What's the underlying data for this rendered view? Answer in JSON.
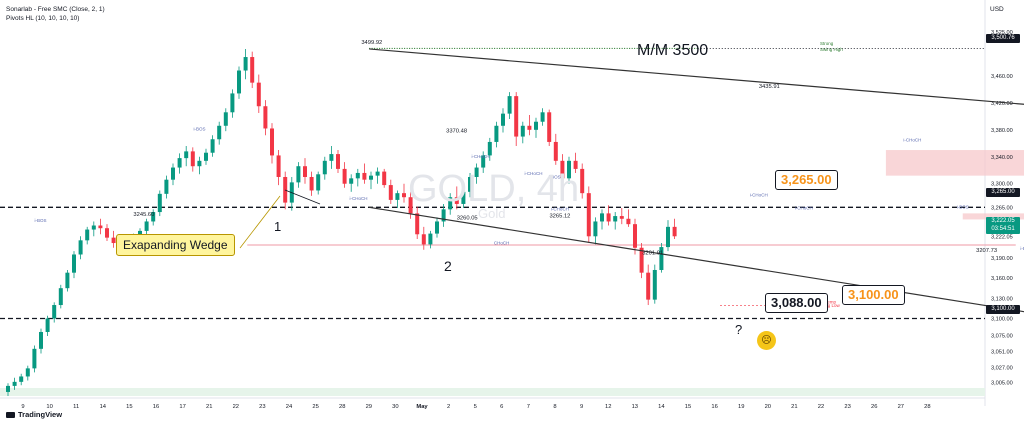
{
  "header": {
    "indicator_1": "Sonarlab - Free SMC (Close, 2, 1)",
    "indicator_2": "Pivots HL (10, 10, 10, 10)",
    "currency": "USD",
    "brand": "TradingView"
  },
  "watermark": {
    "symbol": "GOLD, 4h",
    "description": "Gold"
  },
  "annotations": {
    "mm_label": "M/M 3500",
    "wedge_label": "Exapanding Wedge",
    "wave_1": "1",
    "wave_2": "2",
    "question": "?",
    "callout_3265": "3,265.00",
    "callout_3100": "3,100.00",
    "callout_3088": "3,088.00",
    "strong_high": "Strong",
    "swing_high": "Swing High",
    "temp_line_1": "Temp",
    "temp_line_2": "Swing Low"
  },
  "price_tags": {
    "high": "3,500.76",
    "level_3265": "3,265.00",
    "current_price": "3,222.05",
    "countdown": "03:54:51",
    "level_3100": "3,100.00"
  },
  "smc_labels": [
    {
      "text": "i-BOS",
      "x": 15.7,
      "y": 3379
    },
    {
      "text": "i-BOS",
      "x": 9.7,
      "y": 3243
    },
    {
      "text": "i-CHoCH",
      "x": 21.7,
      "y": 3276
    },
    {
      "text": "i-CHoCH",
      "x": 26.3,
      "y": 3338
    },
    {
      "text": "i-CHoCH",
      "x": 28.3,
      "y": 3313
    },
    {
      "text": "i-BOS",
      "x": 29.1,
      "y": 3308
    },
    {
      "text": "i-CHoCH",
      "x": 29.3,
      "y": 3260
    },
    {
      "text": "CHoCH",
      "x": 27.1,
      "y": 3210
    },
    {
      "text": "i-CHoCH",
      "x": 36.8,
      "y": 3281
    },
    {
      "text": "i-CHoCH",
      "x": 38.5,
      "y": 3262
    },
    {
      "text": "i-CHoCH",
      "x": 42.6,
      "y": 3363
    },
    {
      "text": "i-BOS",
      "x": 44.5,
      "y": 3263
    },
    {
      "text": "i-BOS",
      "x": 46.9,
      "y": 3202
    }
  ],
  "chart_data": {
    "type": "candlestick",
    "symbol": "GOLD",
    "timeframe": "4h",
    "x_ticks": [
      "9",
      "10",
      "11",
      "14",
      "15",
      "16",
      "17",
      "21",
      "22",
      "23",
      "24",
      "25",
      "28",
      "29",
      "30",
      "May",
      "2",
      "5",
      "6",
      "7",
      "8",
      "9",
      "12",
      "13",
      "14",
      "15",
      "16",
      "19",
      "20",
      "21",
      "22",
      "23",
      "26",
      "27",
      "28"
    ],
    "y_ticks": [
      "3,525.00",
      "3,460.00",
      "3,420.00",
      "3,380.00",
      "3,340.00",
      "3,300.00",
      "3,265.00",
      "3,222.05",
      "3,190.00",
      "3,160.00",
      "3,130.00",
      "3,100.00",
      "3,075.00",
      "3,051.00",
      "3,027.00",
      "3,005.00"
    ],
    "ylim": [
      2985,
      3540
    ],
    "candles": [
      [
        2991,
        3004,
        2985,
        3000
      ],
      [
        3000,
        3012,
        2994,
        3006
      ],
      [
        3006,
        3018,
        3001,
        3014
      ],
      [
        3014,
        3030,
        3008,
        3026
      ],
      [
        3026,
        3060,
        3020,
        3055
      ],
      [
        3055,
        3085,
        3048,
        3080
      ],
      [
        3080,
        3104,
        3074,
        3100
      ],
      [
        3100,
        3124,
        3094,
        3120
      ],
      [
        3120,
        3150,
        3115,
        3145
      ],
      [
        3145,
        3172,
        3140,
        3168
      ],
      [
        3168,
        3200,
        3160,
        3195
      ],
      [
        3195,
        3222,
        3188,
        3216
      ],
      [
        3216,
        3236,
        3210,
        3232
      ],
      [
        3232,
        3244,
        3222,
        3238
      ],
      [
        3238,
        3248,
        3225,
        3234
      ],
      [
        3234,
        3240,
        3215,
        3220
      ],
      [
        3220,
        3230,
        3205,
        3212
      ],
      [
        3212,
        3225,
        3203,
        3210
      ],
      [
        3210,
        3222,
        3200,
        3214
      ],
      [
        3214,
        3226,
        3206,
        3220
      ],
      [
        3220,
        3234,
        3212,
        3230
      ],
      [
        3230,
        3248,
        3222,
        3244
      ],
      [
        3244,
        3262,
        3238,
        3258
      ],
      [
        3258,
        3290,
        3252,
        3285
      ],
      [
        3285,
        3312,
        3278,
        3306
      ],
      [
        3306,
        3330,
        3298,
        3324
      ],
      [
        3324,
        3345,
        3315,
        3338
      ],
      [
        3338,
        3356,
        3326,
        3348
      ],
      [
        3348,
        3354,
        3318,
        3326
      ],
      [
        3326,
        3340,
        3314,
        3334
      ],
      [
        3334,
        3352,
        3328,
        3346
      ],
      [
        3346,
        3372,
        3340,
        3366
      ],
      [
        3366,
        3392,
        3358,
        3386
      ],
      [
        3386,
        3412,
        3378,
        3406
      ],
      [
        3406,
        3440,
        3398,
        3434
      ],
      [
        3434,
        3474,
        3426,
        3468
      ],
      [
        3468,
        3500,
        3455,
        3488
      ],
      [
        3488,
        3496,
        3442,
        3450
      ],
      [
        3450,
        3462,
        3405,
        3415
      ],
      [
        3415,
        3424,
        3372,
        3382
      ],
      [
        3382,
        3390,
        3330,
        3342
      ],
      [
        3342,
        3350,
        3298,
        3310
      ],
      [
        3310,
        3318,
        3262,
        3272
      ],
      [
        3272,
        3310,
        3260,
        3302
      ],
      [
        3302,
        3332,
        3294,
        3326
      ],
      [
        3326,
        3338,
        3300,
        3310
      ],
      [
        3310,
        3318,
        3282,
        3290
      ],
      [
        3290,
        3318,
        3284,
        3314
      ],
      [
        3314,
        3340,
        3306,
        3334
      ],
      [
        3334,
        3356,
        3322,
        3344
      ],
      [
        3344,
        3350,
        3316,
        3322
      ],
      [
        3322,
        3332,
        3294,
        3300
      ],
      [
        3300,
        3314,
        3288,
        3308
      ],
      [
        3308,
        3322,
        3296,
        3316
      ],
      [
        3316,
        3330,
        3300,
        3306
      ],
      [
        3306,
        3318,
        3292,
        3312
      ],
      [
        3312,
        3324,
        3300,
        3318
      ],
      [
        3318,
        3322,
        3294,
        3298
      ],
      [
        3298,
        3306,
        3270,
        3276
      ],
      [
        3276,
        3290,
        3264,
        3286
      ],
      [
        3286,
        3300,
        3272,
        3280
      ],
      [
        3280,
        3288,
        3248,
        3256
      ],
      [
        3256,
        3266,
        3218,
        3225
      ],
      [
        3225,
        3236,
        3202,
        3210
      ],
      [
        3210,
        3230,
        3204,
        3226
      ],
      [
        3226,
        3250,
        3220,
        3244
      ],
      [
        3244,
        3270,
        3236,
        3262
      ],
      [
        3262,
        3286,
        3254,
        3280
      ],
      [
        3280,
        3296,
        3262,
        3270
      ],
      [
        3270,
        3292,
        3264,
        3288
      ],
      [
        3288,
        3316,
        3280,
        3310
      ],
      [
        3310,
        3330,
        3300,
        3324
      ],
      [
        3324,
        3348,
        3316,
        3342
      ],
      [
        3342,
        3368,
        3334,
        3362
      ],
      [
        3362,
        3392,
        3354,
        3386
      ],
      [
        3386,
        3412,
        3376,
        3404
      ],
      [
        3404,
        3436,
        3396,
        3430
      ],
      [
        3430,
        3436,
        3356,
        3370
      ],
      [
        3370,
        3392,
        3360,
        3386
      ],
      [
        3386,
        3402,
        3372,
        3380
      ],
      [
        3380,
        3398,
        3368,
        3392
      ],
      [
        3392,
        3412,
        3386,
        3406
      ],
      [
        3406,
        3410,
        3356,
        3362
      ],
      [
        3362,
        3374,
        3328,
        3334
      ],
      [
        3334,
        3344,
        3300,
        3308
      ],
      [
        3308,
        3340,
        3300,
        3334
      ],
      [
        3334,
        3346,
        3316,
        3322
      ],
      [
        3322,
        3330,
        3278,
        3286
      ],
      [
        3286,
        3296,
        3212,
        3222
      ],
      [
        3222,
        3250,
        3210,
        3244
      ],
      [
        3244,
        3262,
        3232,
        3256
      ],
      [
        3256,
        3268,
        3238,
        3244
      ],
      [
        3244,
        3258,
        3232,
        3252
      ],
      [
        3252,
        3264,
        3240,
        3248
      ],
      [
        3248,
        3262,
        3236,
        3240
      ],
      [
        3240,
        3248,
        3195,
        3205
      ],
      [
        3205,
        3212,
        3160,
        3168
      ],
      [
        3168,
        3180,
        3120,
        3128
      ],
      [
        3128,
        3180,
        3122,
        3172
      ],
      [
        3172,
        3212,
        3168,
        3206
      ],
      [
        3206,
        3246,
        3200,
        3236
      ],
      [
        3236,
        3248,
        3218,
        3222
      ]
    ],
    "trendlines": [
      {
        "name": "upper",
        "from": [
          22.1,
          3500
        ],
        "to": [
          53.4,
          3396
        ]
      },
      {
        "name": "lower",
        "from": [
          22.1,
          3265
        ],
        "to": [
          51.3,
          3082
        ]
      }
    ],
    "levels": [
      {
        "value": 3500.76,
        "label": "3,500.76",
        "style": "dotted-green"
      },
      {
        "value": 3265,
        "label": "3,265.00",
        "style": "dashed"
      },
      {
        "value": 3100,
        "label": "3,100.00",
        "style": "dashed"
      },
      {
        "value": 3209,
        "label": "",
        "style": "pink-line"
      }
    ],
    "zones": [
      {
        "from_x": 41.6,
        "to_x": 66,
        "y1": 3312,
        "y2": 3350,
        "color": "#f7c8cb"
      },
      {
        "from_x": 44.5,
        "to_x": 66,
        "y1": 3247,
        "y2": 3256,
        "color": "#f7c8cb"
      }
    ],
    "pivot_labels": [
      {
        "text": "3499.92",
        "x": 22.2,
        "y": 3507
      },
      {
        "text": "3435.91",
        "x": 37.2,
        "y": 3442
      },
      {
        "text": "3370.48",
        "x": 25.4,
        "y": 3376
      },
      {
        "text": "3245.60",
        "x": 13.6,
        "y": 3252
      },
      {
        "text": "3260.05",
        "x": 25.8,
        "y": 3247
      },
      {
        "text": "3265.12",
        "x": 29.3,
        "y": 3250
      },
      {
        "text": "3201.91",
        "x": 32.8,
        "y": 3195
      },
      {
        "text": "3207.73",
        "x": 45.4,
        "y": 3199
      }
    ]
  }
}
